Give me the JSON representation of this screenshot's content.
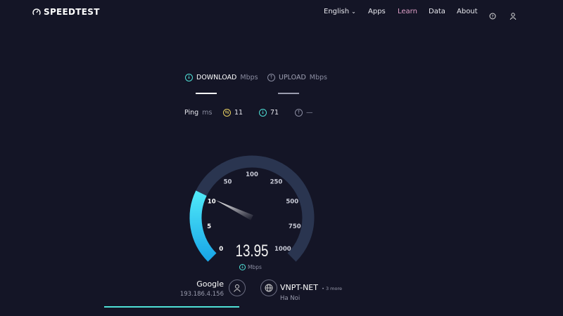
{
  "header": {
    "logo": "SPEEDTEST",
    "nav": {
      "language": "English",
      "apps": "Apps",
      "learn": "Learn",
      "data": "Data",
      "about": "About"
    }
  },
  "tabs": {
    "download": {
      "label": "DOWNLOAD",
      "unit": "Mbps"
    },
    "upload": {
      "label": "UPLOAD",
      "unit": "Mbps"
    }
  },
  "ping": {
    "label": "Ping",
    "unit": "ms",
    "idle": "11",
    "download": "71",
    "upload": "—"
  },
  "gauge": {
    "ticks": [
      "0",
      "5",
      "10",
      "50",
      "100",
      "250",
      "500",
      "750",
      "1000"
    ],
    "value": "13.95",
    "unit": "Mbps",
    "needle_value": 13.95,
    "accent": "#2fd0f5",
    "track": "#2a3550"
  },
  "server": {
    "isp": "Google",
    "ip": "193.186.4.156",
    "host": "VNPT-NET",
    "more": "• 3 more",
    "location": "Ha Noi"
  },
  "progress": {
    "fraction": 0.24,
    "color": "#4fe0d6"
  }
}
